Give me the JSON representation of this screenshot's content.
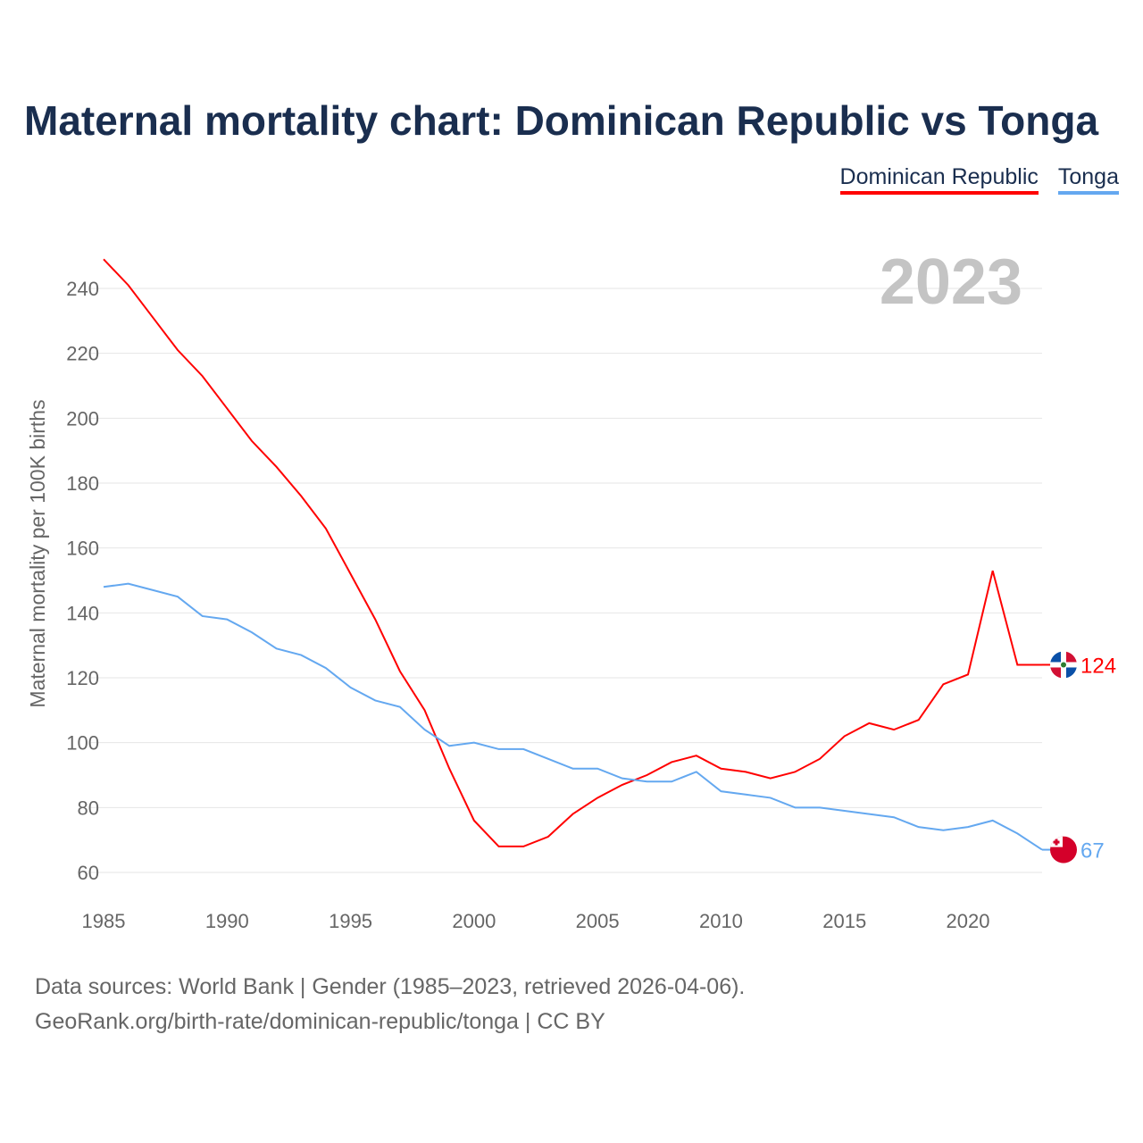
{
  "title": "Maternal mortality chart: Dominican Republic vs Tonga",
  "year_label": "2023",
  "footer": {
    "line1": "Data sources: World Bank | Gender (1985–2023, retrieved 2026-04-06).",
    "line2": "GeoRank.org/birth-rate/dominican-republic/tonga | CC BY"
  },
  "chart_data": {
    "type": "line",
    "title": "Maternal mortality chart: Dominican Republic vs Tonga",
    "xlabel": "",
    "ylabel": "Maternal mortality per 100K births",
    "xlim": [
      1985,
      2023
    ],
    "ylim": [
      50,
      255
    ],
    "xticks": [
      1985,
      1990,
      1995,
      2000,
      2005,
      2010,
      2015,
      2020
    ],
    "yticks": [
      60,
      80,
      100,
      120,
      140,
      160,
      180,
      200,
      220,
      240
    ],
    "grid": true,
    "legend_placement": "top-right",
    "x": [
      1985,
      1986,
      1987,
      1988,
      1989,
      1990,
      1991,
      1992,
      1993,
      1994,
      1995,
      1996,
      1997,
      1998,
      1999,
      2000,
      2001,
      2002,
      2003,
      2004,
      2005,
      2006,
      2007,
      2008,
      2009,
      2010,
      2011,
      2012,
      2013,
      2014,
      2015,
      2016,
      2017,
      2018,
      2019,
      2020,
      2021,
      2022,
      2023
    ],
    "series": [
      {
        "name": "Dominican Republic",
        "color": "#ff0000",
        "end_label": "124",
        "values": [
          249,
          241,
          231,
          221,
          213,
          203,
          193,
          185,
          176,
          166,
          152,
          138,
          122,
          110,
          92,
          76,
          68,
          68,
          71,
          78,
          83,
          87,
          90,
          94,
          96,
          92,
          91,
          89,
          91,
          95,
          102,
          106,
          104,
          107,
          118,
          121,
          153,
          124,
          124
        ]
      },
      {
        "name": "Tonga",
        "color": "#64a8f0",
        "end_label": "67",
        "values": [
          148,
          149,
          147,
          145,
          139,
          138,
          134,
          129,
          127,
          123,
          117,
          113,
          111,
          104,
          99,
          100,
          98,
          98,
          95,
          92,
          92,
          89,
          88,
          88,
          91,
          85,
          84,
          83,
          80,
          80,
          79,
          78,
          77,
          74,
          73,
          74,
          76,
          72,
          67
        ]
      }
    ]
  }
}
